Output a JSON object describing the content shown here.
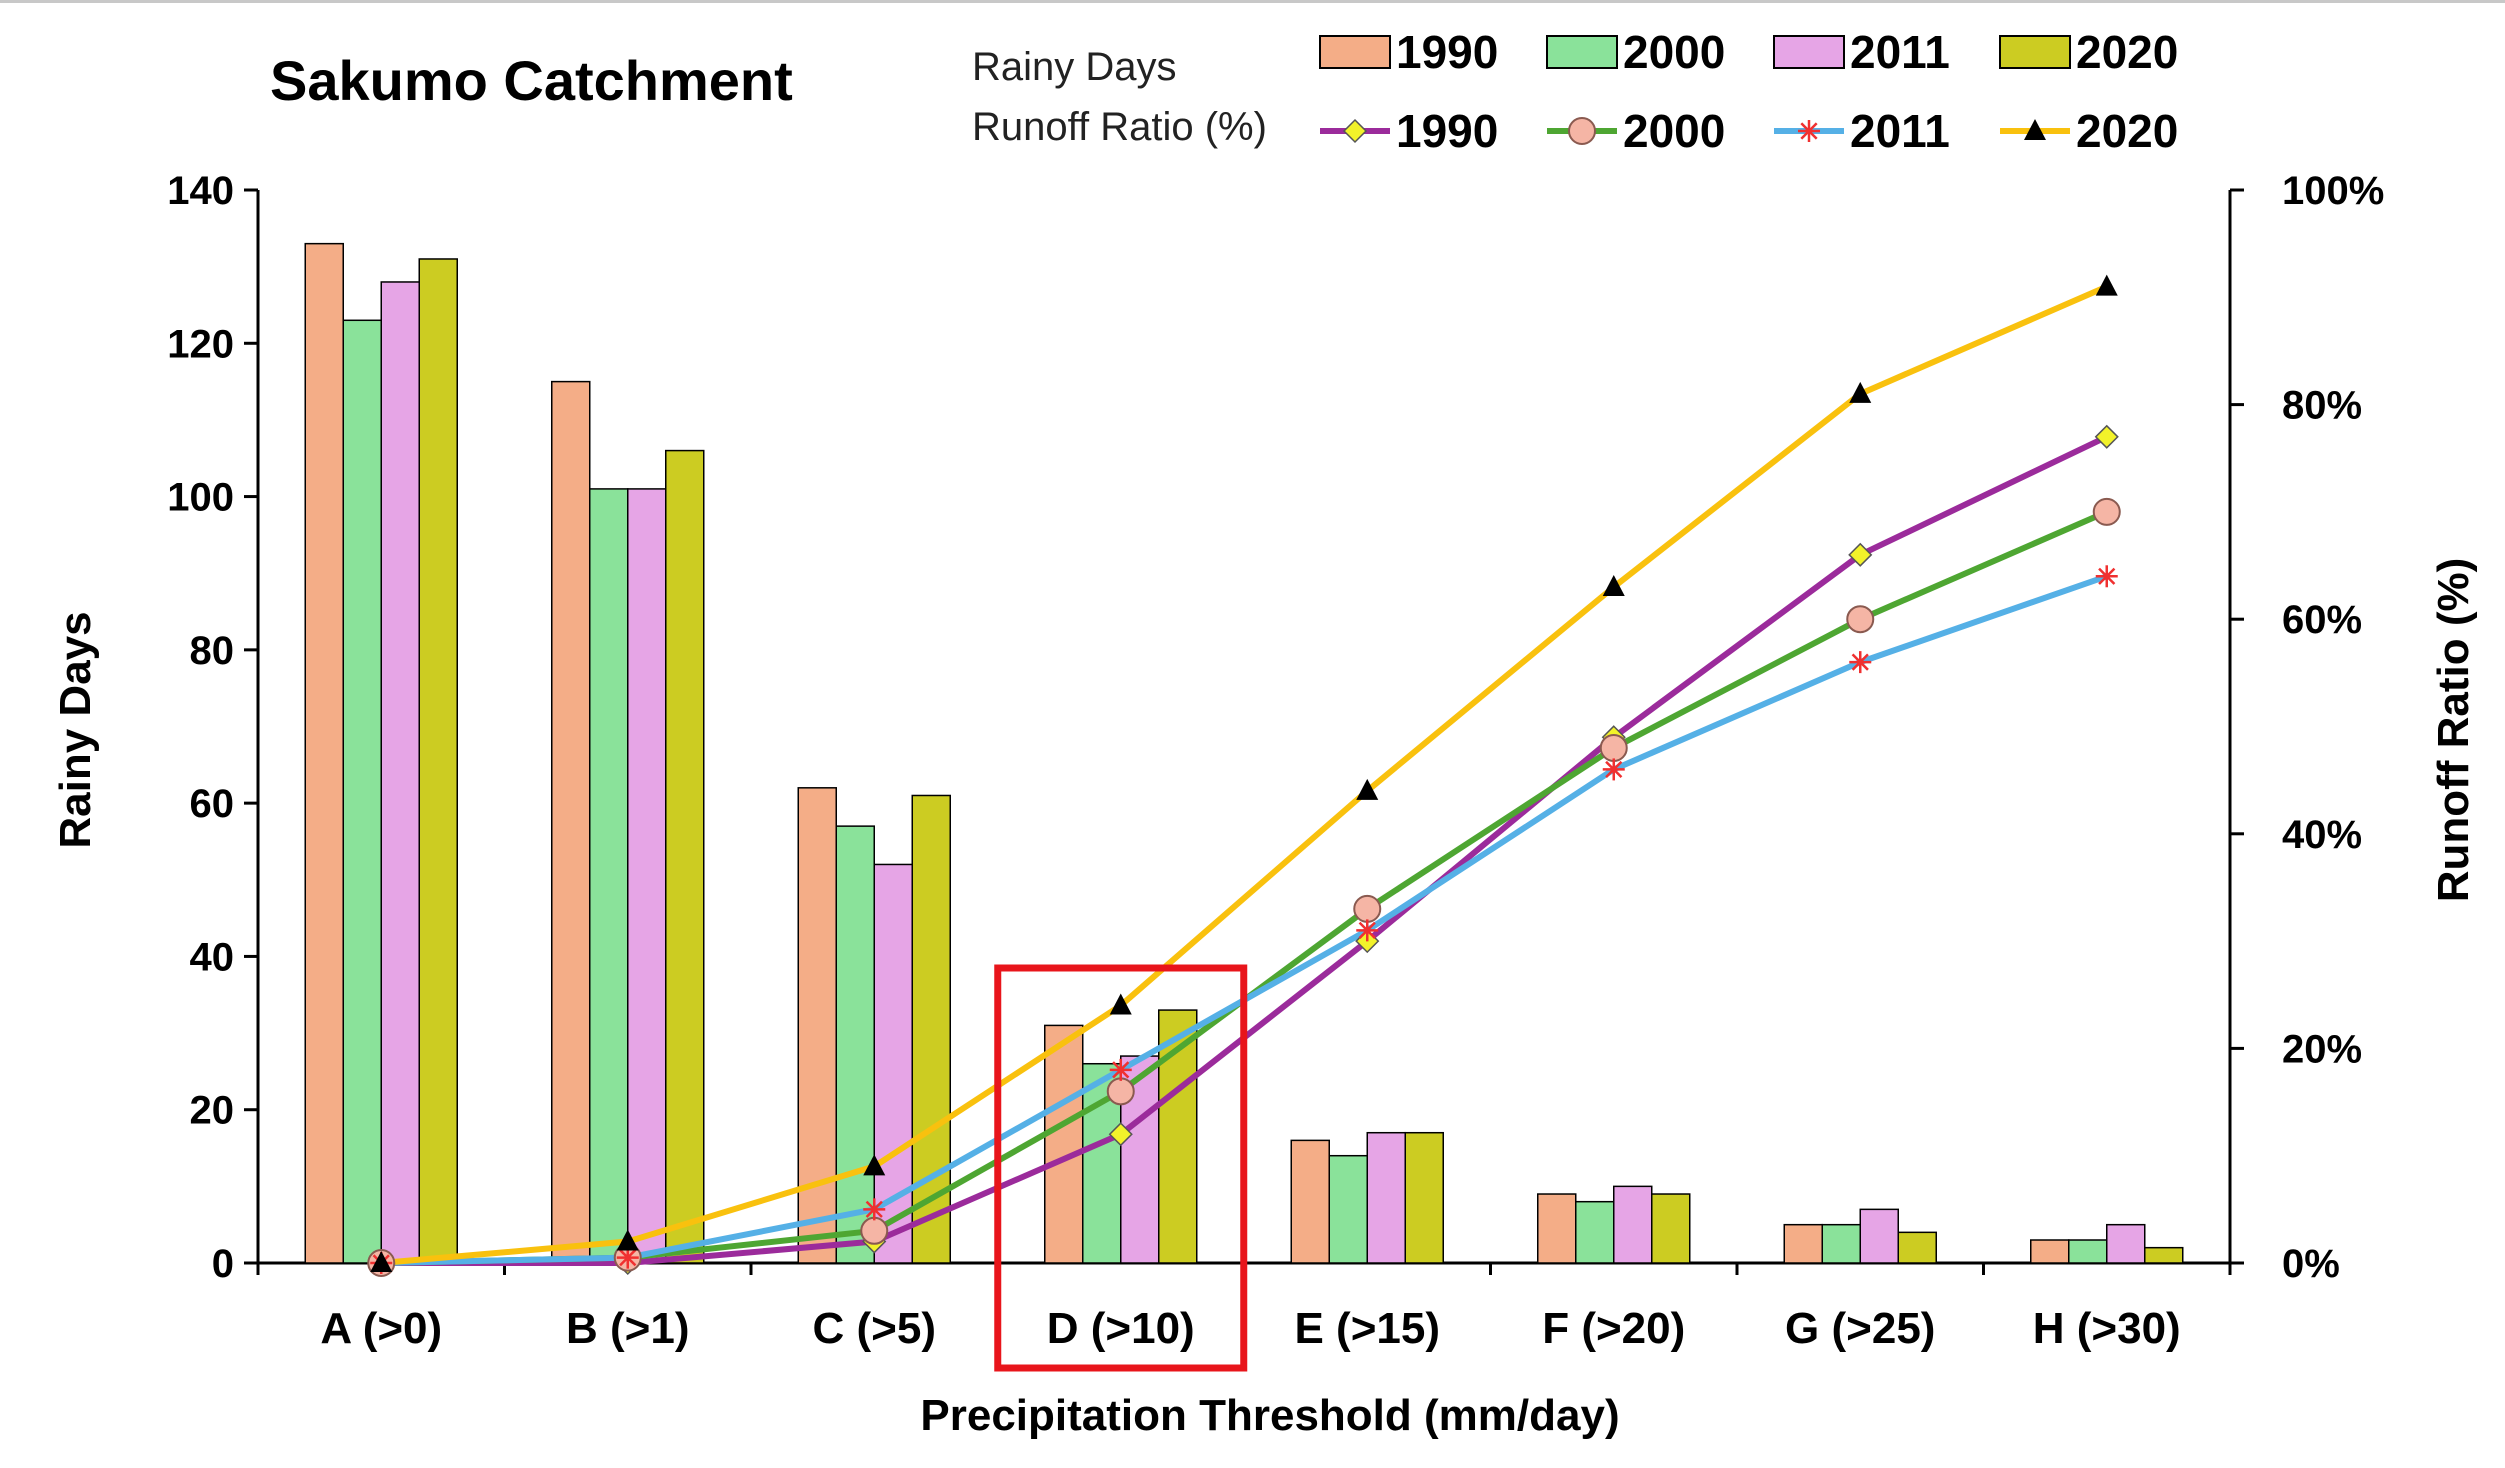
{
  "chart_data": {
    "type": "bar+line",
    "title": "Sakumo Catchment",
    "xlabel": "Precipitation Threshold (mm/day)",
    "ylabel": "Rainy Days",
    "y2label": "Runoff Ratio (%)",
    "ylim": [
      0,
      140
    ],
    "y2lim": [
      0,
      100
    ],
    "yticks": [
      "0",
      "20",
      "40",
      "60",
      "80",
      "100",
      "120",
      "140"
    ],
    "y2ticks": [
      "0%",
      "20%",
      "40%",
      "60%",
      "80%",
      "100%"
    ],
    "categories": [
      "A (>0)",
      "B (>1)",
      "C (>5)",
      "D (>10)",
      "E (>15)",
      "F (>20)",
      "G (>25)",
      "H (>30)"
    ],
    "legend": {
      "bars_heading": "Rainy Days",
      "lines_heading": "Runoff Ratio (%)",
      "position": "top"
    },
    "bar_series": [
      {
        "name": "1990",
        "color": "#F4AD87",
        "values": [
          133,
          115,
          62,
          31,
          16,
          9,
          5,
          3
        ]
      },
      {
        "name": "2000",
        "color": "#8AE29A",
        "values": [
          123,
          101,
          57,
          26,
          14,
          8,
          5,
          3
        ]
      },
      {
        "name": "2011",
        "color": "#E6A5E6",
        "values": [
          128,
          101,
          52,
          27,
          17,
          10,
          7,
          5
        ]
      },
      {
        "name": "2020",
        "color": "#CCCC22",
        "values": [
          131,
          106,
          61,
          33,
          17,
          9,
          4,
          2
        ]
      }
    ],
    "line_series": [
      {
        "name": "1990",
        "color": "#9B2B9B",
        "marker": "diamond",
        "marker_color": "#F2F22A",
        "values": [
          0,
          0,
          2,
          12,
          30,
          49,
          66,
          77
        ]
      },
      {
        "name": "2000",
        "color": "#4EA632",
        "marker": "circle",
        "marker_color": "#F5B5A5",
        "values": [
          0,
          0.5,
          3,
          16,
          33,
          48,
          60,
          70
        ]
      },
      {
        "name": "2011",
        "color": "#55B0E6",
        "marker": "asterisk",
        "marker_color": "#F03030",
        "values": [
          0,
          0.5,
          5,
          18,
          31,
          46,
          56,
          64
        ]
      },
      {
        "name": "2020",
        "color": "#F9C10E",
        "marker": "triangle",
        "marker_color": "#000000",
        "values": [
          0,
          2,
          9,
          24,
          44,
          63,
          81,
          91
        ]
      }
    ],
    "highlight": {
      "category": "D (>10)",
      "color": "#E8151B"
    }
  }
}
